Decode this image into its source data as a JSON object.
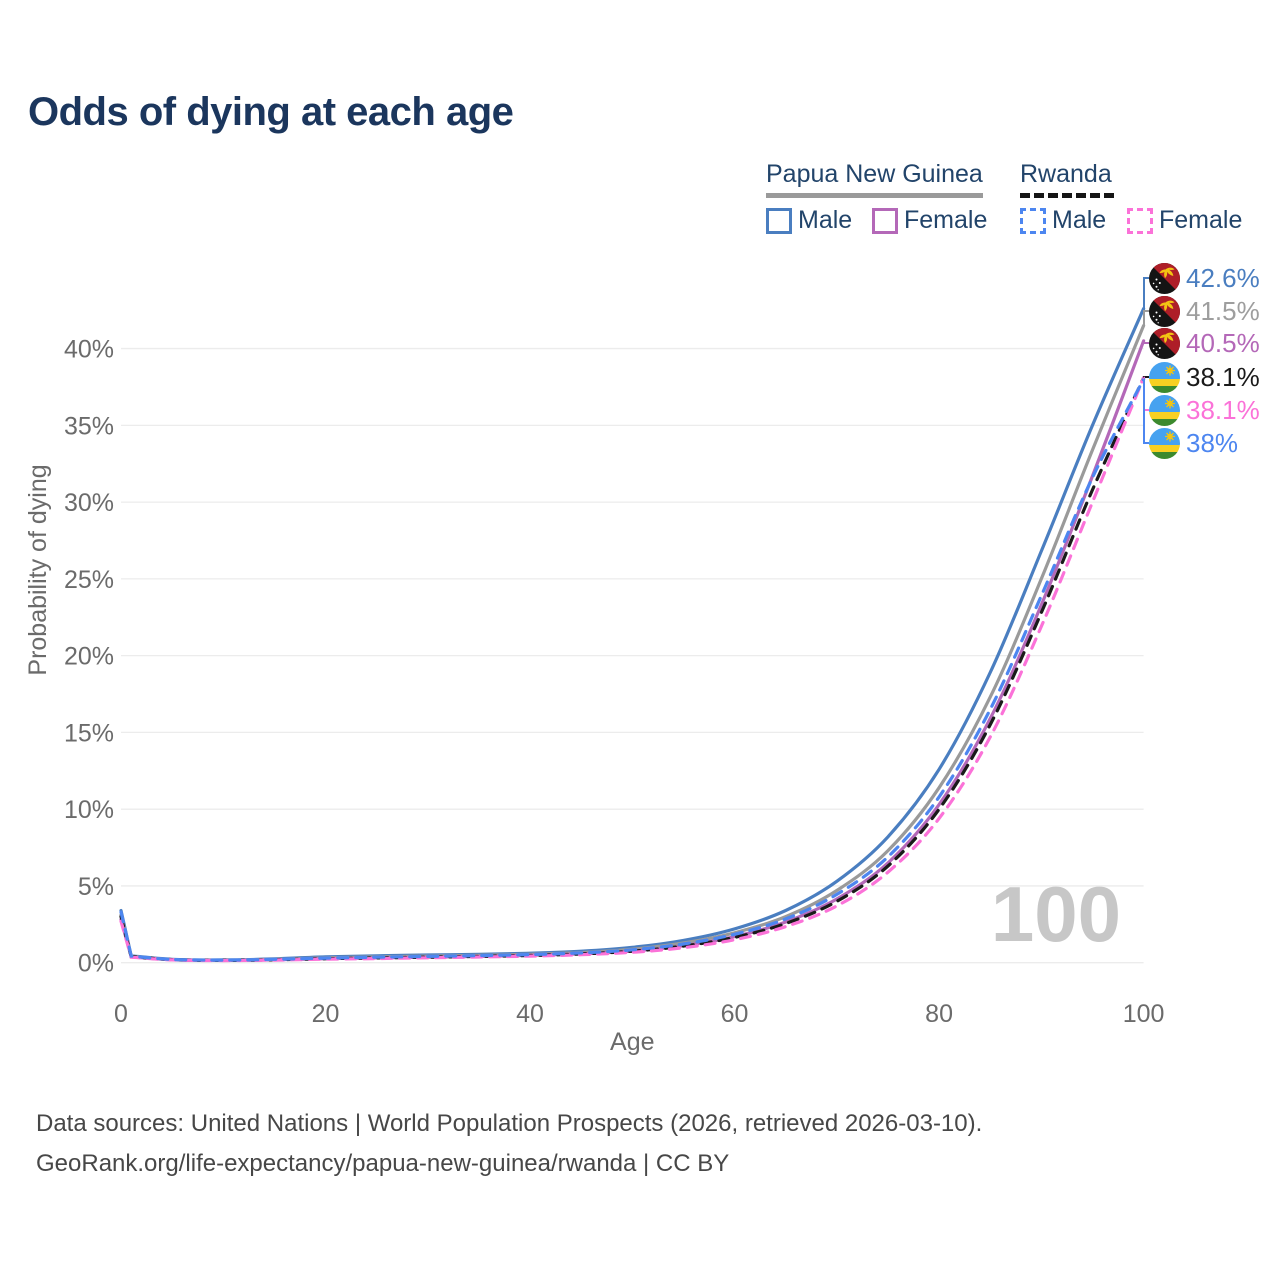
{
  "title": "Odds of dying at each age",
  "legend": {
    "png": {
      "label": "Papua New Guinea",
      "male": "Male",
      "female": "Female"
    },
    "rwanda": {
      "label": "Rwanda",
      "male": "Male",
      "female": "Female"
    }
  },
  "watermark": "100",
  "footer": {
    "line1": "Data sources: United Nations | World Population Prospects (2026, retrieved 2026-03-10).",
    "line2": "GeoRank.org/life-expectancy/papua-new-guinea/rwanda | CC BY"
  },
  "colors": {
    "title": "#1b365d",
    "legend_text": "#22446a",
    "axis_text": "#6b6b6b",
    "grid": "#ececec",
    "watermark": "#c7c7c7",
    "png_underline": "#9a9a9a",
    "rwanda_underline": "#151515"
  },
  "chart_data": {
    "type": "line",
    "title": "Odds of dying at each age",
    "xlabel": "Age",
    "ylabel": "Probability of dying",
    "xlim": [
      0,
      100
    ],
    "ylim_percent": [
      0,
      44.5
    ],
    "grid": true,
    "legend_position": "top-right",
    "x_ticks": [
      0,
      20,
      40,
      60,
      80,
      100
    ],
    "y_tick_labels": [
      "0%",
      "5%",
      "10%",
      "15%",
      "20%",
      "25%",
      "30%",
      "35%",
      "40%"
    ],
    "y_tick_values": [
      0,
      5,
      10,
      15,
      20,
      25,
      30,
      35,
      40
    ],
    "x": [
      0,
      1,
      5,
      10,
      15,
      20,
      25,
      30,
      35,
      40,
      45,
      50,
      55,
      60,
      65,
      70,
      75,
      80,
      85,
      90,
      95,
      100
    ],
    "series": [
      {
        "name": "papua-new-guinea-male",
        "country": "Papua New Guinea",
        "group": "Male",
        "style": "solid",
        "color": "#4a7ec0",
        "values": [
          3.4,
          0.45,
          0.22,
          0.18,
          0.25,
          0.38,
          0.45,
          0.5,
          0.55,
          0.62,
          0.75,
          1.0,
          1.45,
          2.2,
          3.4,
          5.3,
          8.2,
          12.6,
          18.9,
          26.8,
          35.0,
          42.6
        ]
      },
      {
        "name": "papua-new-guinea-combined",
        "country": "Papua New Guinea",
        "group": "Combined",
        "style": "solid",
        "color": "#9a9a9a",
        "values": [
          3.1,
          0.42,
          0.2,
          0.16,
          0.22,
          0.32,
          0.38,
          0.43,
          0.48,
          0.55,
          0.66,
          0.88,
          1.28,
          1.95,
          3.0,
          4.7,
          7.3,
          11.4,
          17.3,
          25.0,
          33.4,
          41.5
        ]
      },
      {
        "name": "papua-new-guinea-female",
        "country": "Papua New Guinea",
        "group": "Female",
        "style": "solid",
        "color": "#b468b8",
        "values": [
          2.8,
          0.38,
          0.19,
          0.15,
          0.19,
          0.26,
          0.31,
          0.36,
          0.41,
          0.48,
          0.58,
          0.76,
          1.1,
          1.7,
          2.65,
          4.15,
          6.5,
          10.3,
          15.9,
          23.3,
          31.7,
          40.5
        ]
      },
      {
        "name": "rwanda-combined",
        "country": "Rwanda",
        "group": "Combined",
        "style": "dashed",
        "color": "#1a1a1a",
        "values": [
          3.0,
          0.4,
          0.2,
          0.15,
          0.19,
          0.26,
          0.31,
          0.36,
          0.41,
          0.47,
          0.57,
          0.75,
          1.08,
          1.65,
          2.55,
          4.0,
          6.3,
          10.0,
          15.5,
          22.8,
          30.8,
          38.1
        ]
      },
      {
        "name": "rwanda-female",
        "country": "Rwanda",
        "group": "Female",
        "style": "dashed",
        "color": "#fb72d8",
        "values": [
          2.7,
          0.36,
          0.18,
          0.14,
          0.17,
          0.23,
          0.27,
          0.32,
          0.37,
          0.43,
          0.52,
          0.68,
          0.98,
          1.5,
          2.35,
          3.7,
          5.9,
          9.4,
          14.7,
          21.9,
          30.0,
          38.1
        ]
      },
      {
        "name": "rwanda-male",
        "country": "Rwanda",
        "group": "Male",
        "style": "dashed",
        "color": "#4d86f0",
        "values": [
          3.3,
          0.43,
          0.21,
          0.17,
          0.22,
          0.3,
          0.36,
          0.41,
          0.46,
          0.53,
          0.64,
          0.84,
          1.22,
          1.85,
          2.85,
          4.45,
          6.9,
          10.8,
          16.5,
          23.9,
          31.6,
          38.0
        ]
      }
    ],
    "end_labels": [
      {
        "text": "42.6%",
        "color": "#4a7ec0",
        "flag": "papua-new-guinea-flag-icon"
      },
      {
        "text": "41.5%",
        "color": "#9e9e9e",
        "flag": "papua-new-guinea-flag-icon"
      },
      {
        "text": "40.5%",
        "color": "#b468b8",
        "flag": "papua-new-guinea-flag-icon"
      },
      {
        "text": "38.1%",
        "color": "#1a1a1a",
        "flag": "rwanda-flag-icon"
      },
      {
        "text": "38.1%",
        "color": "#fb72d8",
        "flag": "rwanda-flag-icon"
      },
      {
        "text": "38%",
        "color": "#4d86f0",
        "flag": "rwanda-flag-icon"
      }
    ]
  }
}
